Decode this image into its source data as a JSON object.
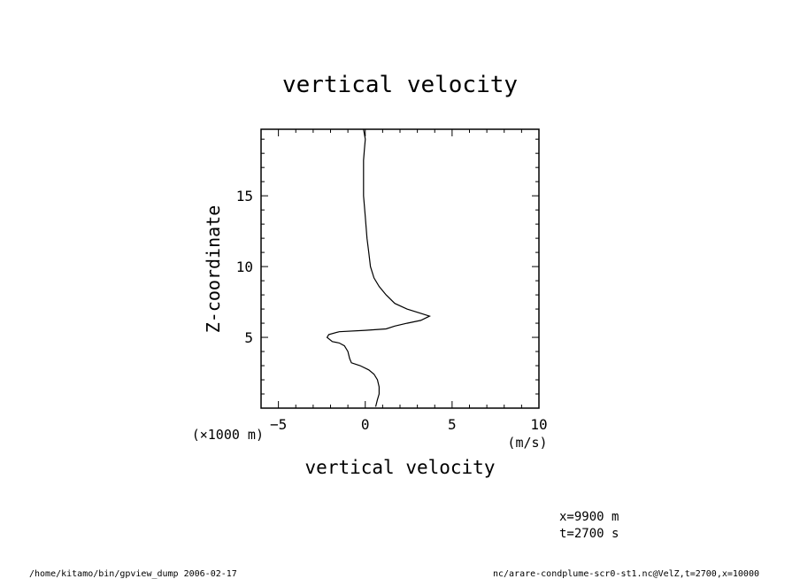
{
  "chart_data": {
    "type": "line",
    "title": "vertical velocity",
    "xlabel": "vertical velocity",
    "xunit": "(m/s)",
    "ylabel": "Z-coordinate",
    "yunit": "(×1000 m)",
    "xlim": [
      -6,
      10
    ],
    "ylim": [
      0,
      19.7
    ],
    "xticks": [
      -5,
      0,
      5,
      10
    ],
    "xtick_labels": [
      "−5",
      "0",
      "5",
      "10"
    ],
    "yticks": [
      5,
      10,
      15
    ],
    "ytick_labels": [
      "5",
      "10",
      "15"
    ],
    "grid": false,
    "legend": "none",
    "series": [
      {
        "x": [
          0.6,
          0.7,
          0.8,
          0.8,
          0.7,
          0.5,
          0.2,
          -0.3,
          -0.8,
          -0.9,
          -1.0,
          -1.2,
          -1.5,
          -1.9,
          -2.2,
          -2.1,
          -1.5,
          0.0,
          1.2,
          1.7,
          2.4,
          3.2,
          3.7,
          3.2,
          2.4,
          1.7,
          1.2,
          0.8,
          0.5,
          0.3,
          0.2,
          0.1,
          0.0,
          -0.1,
          -0.1,
          -0.1,
          -0.05,
          0.0,
          -0.1
        ],
        "y": [
          0.1,
          0.6,
          1.0,
          1.5,
          2.0,
          2.4,
          2.7,
          3.0,
          3.2,
          3.5,
          4.0,
          4.4,
          4.6,
          4.7,
          5.0,
          5.2,
          5.4,
          5.5,
          5.6,
          5.8,
          6.0,
          6.2,
          6.5,
          6.7,
          7.0,
          7.4,
          8.0,
          8.6,
          9.2,
          10.0,
          11.0,
          12.0,
          13.5,
          15.0,
          16.5,
          17.5,
          18.3,
          19.0,
          19.7
        ]
      }
    ]
  },
  "annotations": {
    "coord_x": "x=9900  m",
    "coord_t": "t=2700  s"
  },
  "footer": {
    "left": "/home/kitamo/bin/gpview_dump  2006-02-17",
    "right": "nc/arare-condplume-scr0-st1.nc@VelZ,t=2700,x=10000"
  }
}
